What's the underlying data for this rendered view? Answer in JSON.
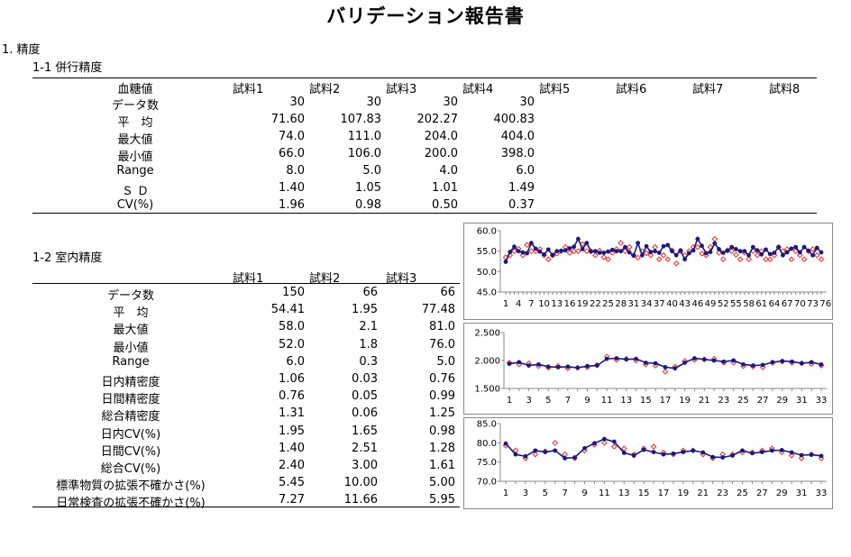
{
  "title": "バリデーション報告書",
  "section1": "1. 精度",
  "subsection1": "1-1 併行精度",
  "subsection2": "1-2 室内精度",
  "repeat": {
    "corner": "血糖値",
    "headers": [
      "試料1",
      "試料2",
      "試料3",
      "試料4",
      "試料5",
      "試料6",
      "試料7",
      "試料8"
    ],
    "rows": [
      {
        "label": "データ数",
        "values": [
          "30",
          "30",
          "30",
          "30"
        ]
      },
      {
        "label": "平　均",
        "values": [
          "71.60",
          "107.83",
          "202.27",
          "400.83"
        ]
      },
      {
        "label": "最大値",
        "values": [
          "74.0",
          "111.0",
          "204.0",
          "404.0"
        ]
      },
      {
        "label": "最小値",
        "values": [
          "66.0",
          "106.0",
          "200.0",
          "398.0"
        ]
      },
      {
        "label": "Range",
        "values": [
          "8.0",
          "5.0",
          "4.0",
          "6.0"
        ]
      },
      {
        "label": "Ｓ Ｄ",
        "values": [
          "1.40",
          "1.05",
          "1.01",
          "1.49"
        ]
      },
      {
        "label": "CV(%)",
        "values": [
          "1.96",
          "0.98",
          "0.50",
          "0.37"
        ]
      }
    ]
  },
  "intermediate": {
    "headers": [
      "試料1",
      "試料2",
      "試料3"
    ],
    "rows": [
      {
        "label": "データ数",
        "values": [
          "150",
          "66",
          "66"
        ]
      },
      {
        "label": "平　均",
        "values": [
          "54.41",
          "1.95",
          "77.48"
        ]
      },
      {
        "label": "最大値",
        "values": [
          "58.0",
          "2.1",
          "81.0"
        ]
      },
      {
        "label": "最小値",
        "values": [
          "52.0",
          "1.8",
          "76.0"
        ]
      },
      {
        "label": "Range",
        "values": [
          "6.0",
          "0.3",
          "5.0"
        ]
      },
      {
        "label": "日内精密度",
        "values": [
          "1.06",
          "0.03",
          "0.76"
        ]
      },
      {
        "label": "日間精密度",
        "values": [
          "0.76",
          "0.05",
          "0.99"
        ]
      },
      {
        "label": "総合精密度",
        "values": [
          "1.31",
          "0.06",
          "1.25"
        ]
      },
      {
        "label": "日内CV(%)",
        "values": [
          "1.95",
          "1.65",
          "0.98"
        ]
      },
      {
        "label": "日間CV(%)",
        "values": [
          "1.40",
          "2.51",
          "1.28"
        ]
      },
      {
        "label": "総合CV(%)",
        "values": [
          "2.40",
          "3.00",
          "1.61"
        ]
      },
      {
        "label": "標準物質の拡張不確かさ(%)",
        "values": [
          "5.45",
          "10.00",
          "5.00"
        ]
      },
      {
        "label": "日常検査の拡張不確かさ(%)",
        "values": [
          "7.27",
          "11.66",
          "5.95"
        ]
      }
    ]
  },
  "colors": {
    "series_a": "#1a1a7a",
    "series_b": "#e03030",
    "axis": "#888888"
  },
  "chart_data": [
    {
      "type": "line",
      "ylim": [
        45.0,
        60.0
      ],
      "yticks": [
        "45.0",
        "50.0",
        "55.0",
        "60.0"
      ],
      "xticks": [
        "1",
        "4",
        "7",
        "10",
        "13",
        "16",
        "19",
        "22",
        "25",
        "28",
        "31",
        "34",
        "37",
        "40",
        "43",
        "46",
        "49",
        "52",
        "55",
        "58",
        "61",
        "64",
        "67",
        "70",
        "73",
        "76"
      ],
      "x_count": 75,
      "series": [
        {
          "values": [
            52.4,
            54.8,
            56.1,
            55.0,
            54.7,
            54.5,
            57.0,
            55.6,
            54.9,
            54.2,
            55.4,
            54.0,
            55.0,
            55.1,
            55.2,
            55.7,
            56.1,
            58.0,
            55.5,
            57.0,
            54.9,
            55.0,
            54.6,
            54.6,
            54.9,
            55.3,
            55.0,
            55.0,
            56.0,
            54.7,
            53.9,
            57.0,
            54.0,
            56.2,
            54.8,
            55.0,
            54.6,
            56.2,
            56.5,
            55.0,
            54.0,
            55.2,
            53.0,
            54.5,
            55.2,
            58.0,
            56.3,
            54.5,
            54.8,
            56.9,
            55.5,
            54.6,
            55.1,
            56.0,
            55.5,
            55.0,
            55.0,
            54.0,
            56.0,
            55.2,
            54.2,
            55.4,
            54.3,
            54.6,
            56.0,
            54.0,
            54.7,
            55.6,
            56.0,
            54.7,
            56.0,
            55.1,
            54.0,
            55.8,
            54.7
          ]
        },
        {
          "values": [
            53.5,
            54.0,
            55.0,
            55.6,
            54.0,
            56.5,
            55.0,
            55.0,
            55.5,
            54.0,
            53.0,
            54.0,
            54.4,
            55.0,
            56.0,
            54.6,
            55.0,
            55.0,
            56.7,
            55.0,
            55.0,
            54.0,
            55.1,
            53.5,
            53.0,
            54.6,
            55.5,
            57.0,
            55.0,
            56.0,
            54.0,
            53.4,
            55.0,
            54.5,
            54.0,
            56.0,
            53.0,
            54.0,
            53.0,
            55.2,
            52.0,
            55.0,
            54.0,
            55.0,
            56.0,
            56.0,
            54.4,
            54.0,
            56.0,
            58.0,
            54.6,
            53.0,
            55.2,
            55.0,
            54.1,
            53.0,
            54.6,
            53.0,
            55.0,
            54.0,
            55.0,
            53.0,
            53.0,
            54.0,
            56.0,
            55.0,
            55.5,
            53.0,
            55.0,
            54.0,
            53.0,
            55.0,
            55.5,
            54.0,
            53.0
          ]
        }
      ]
    },
    {
      "type": "line",
      "ylim": [
        1.5,
        2.5
      ],
      "yticks": [
        "1.500",
        "2.000",
        "2.500"
      ],
      "xticks": [
        "1",
        "3",
        "5",
        "7",
        "9",
        "11",
        "13",
        "15",
        "17",
        "19",
        "21",
        "23",
        "25",
        "27",
        "29",
        "31",
        "33"
      ],
      "x_count": 33,
      "series": [
        {
          "values": [
            1.94,
            1.97,
            1.91,
            1.93,
            1.89,
            1.88,
            1.89,
            1.87,
            1.9,
            1.91,
            2.03,
            2.04,
            2.02,
            2.03,
            1.96,
            1.95,
            1.88,
            1.86,
            1.96,
            2.04,
            2.02,
            2.0,
            1.98,
            2.0,
            1.93,
            1.91,
            1.92,
            1.97,
            1.99,
            1.98,
            1.95,
            1.97,
            1.93
          ]
        },
        {
          "values": [
            1.96,
            1.93,
            1.95,
            1.9,
            1.87,
            1.9,
            1.86,
            1.87,
            1.88,
            1.92,
            2.07,
            2.01,
            2.03,
            2.0,
            1.93,
            1.91,
            1.8,
            1.89,
            1.99,
            2.01,
            2.02,
            2.03,
            1.96,
            1.96,
            1.9,
            1.89,
            1.88,
            1.96,
            1.98,
            1.96,
            1.95,
            1.94,
            1.91
          ]
        }
      ]
    },
    {
      "type": "line",
      "ylim": [
        70.0,
        85.0
      ],
      "yticks": [
        "70.0",
        "75.0",
        "80.0",
        "85.0"
      ],
      "xticks": [
        "1",
        "3",
        "5",
        "7",
        "9",
        "11",
        "13",
        "15",
        "17",
        "19",
        "21",
        "23",
        "25",
        "27",
        "29",
        "31",
        "33"
      ],
      "x_count": 33,
      "series": [
        {
          "values": [
            79.8,
            77.0,
            76.5,
            78.0,
            77.6,
            78.0,
            76.0,
            76.2,
            78.6,
            79.9,
            81.0,
            80.3,
            77.4,
            76.7,
            78.2,
            77.6,
            77.0,
            77.2,
            77.6,
            78.0,
            77.5,
            76.3,
            76.2,
            76.7,
            78.0,
            77.3,
            77.6,
            78.0,
            78.1,
            77.5,
            76.8,
            76.9,
            76.6
          ]
        },
        {
          "values": [
            79.3,
            78.0,
            76.0,
            77.0,
            77.8,
            80.0,
            77.0,
            76.0,
            78.0,
            79.5,
            80.0,
            79.0,
            78.5,
            77.0,
            78.5,
            79.0,
            77.5,
            77.0,
            78.0,
            78.0,
            77.0,
            76.0,
            77.0,
            77.0,
            77.5,
            77.5,
            78.0,
            78.5,
            77.5,
            76.7,
            76.0,
            77.0,
            76.0
          ]
        }
      ]
    }
  ]
}
